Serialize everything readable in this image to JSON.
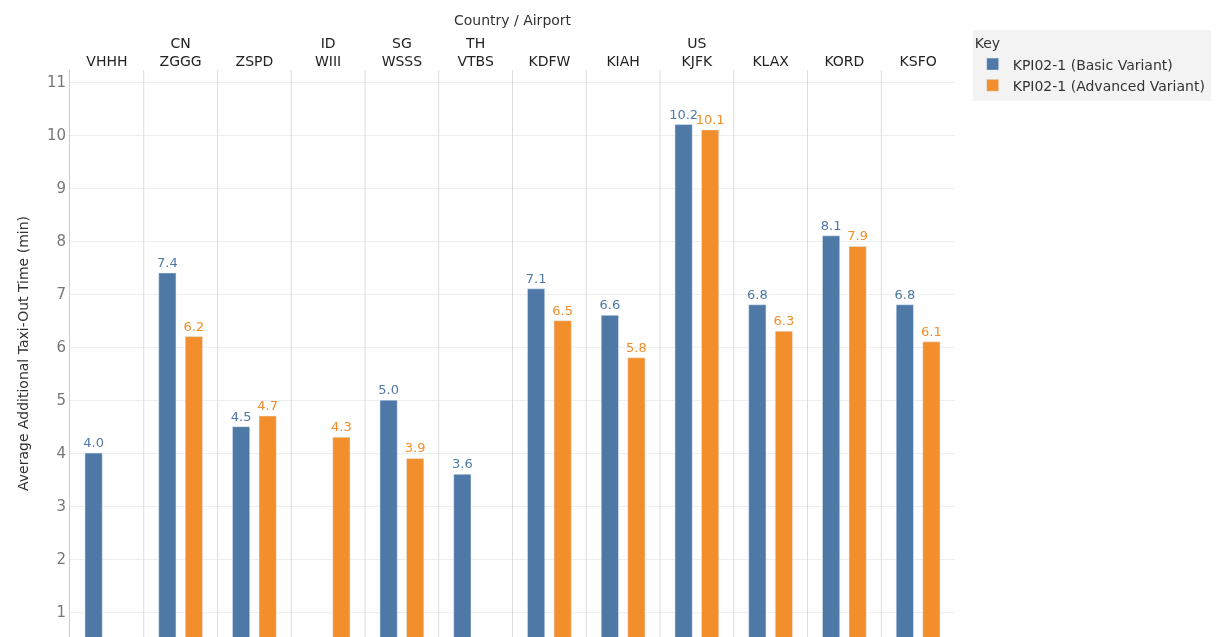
{
  "chart_data": {
    "type": "bar",
    "xlabel": "Country / Airport",
    "ylabel": "Average Additional Taxi-Out Time (min)",
    "legend_title": "Key",
    "categories": [
      "VHHH",
      "CN\nZGGG",
      "ZSPD",
      "ID\nWIII",
      "SG\nWSSS",
      "TH\nVTBS",
      "KDFW",
      "KIAH",
      "US\nKJFK",
      "KLAX",
      "KORD",
      "KSFO"
    ],
    "series": [
      {
        "name": "KPI02-1 (Basic Variant)",
        "color": "#4e79a7",
        "values": [
          4.0,
          7.4,
          4.5,
          null,
          5.0,
          3.6,
          7.1,
          6.6,
          10.2,
          6.8,
          8.1,
          6.8
        ],
        "value_labels": [
          "4.0",
          "7.4",
          "4.5",
          null,
          "5.0",
          "3.6",
          "7.1",
          "6.6",
          "10.2",
          "6.8",
          "8.1",
          "6.8"
        ]
      },
      {
        "name": "KPI02-1 (Advanced Variant)",
        "color": "#f28e2b",
        "values": [
          null,
          6.2,
          4.7,
          4.3,
          3.9,
          null,
          6.5,
          5.8,
          10.1,
          6.3,
          7.9,
          6.1
        ],
        "value_labels": [
          null,
          "6.2",
          "4.7",
          "4.3",
          "3.9",
          null,
          "6.5",
          "5.8",
          "10.1",
          "6.3",
          "7.9",
          "6.1"
        ]
      }
    ],
    "ylim": [
      0.53,
      11.23
    ],
    "yticks": [
      1,
      2,
      3,
      4,
      5,
      6,
      7,
      8,
      9,
      10,
      11
    ],
    "grid": "y",
    "legend": "top right"
  }
}
